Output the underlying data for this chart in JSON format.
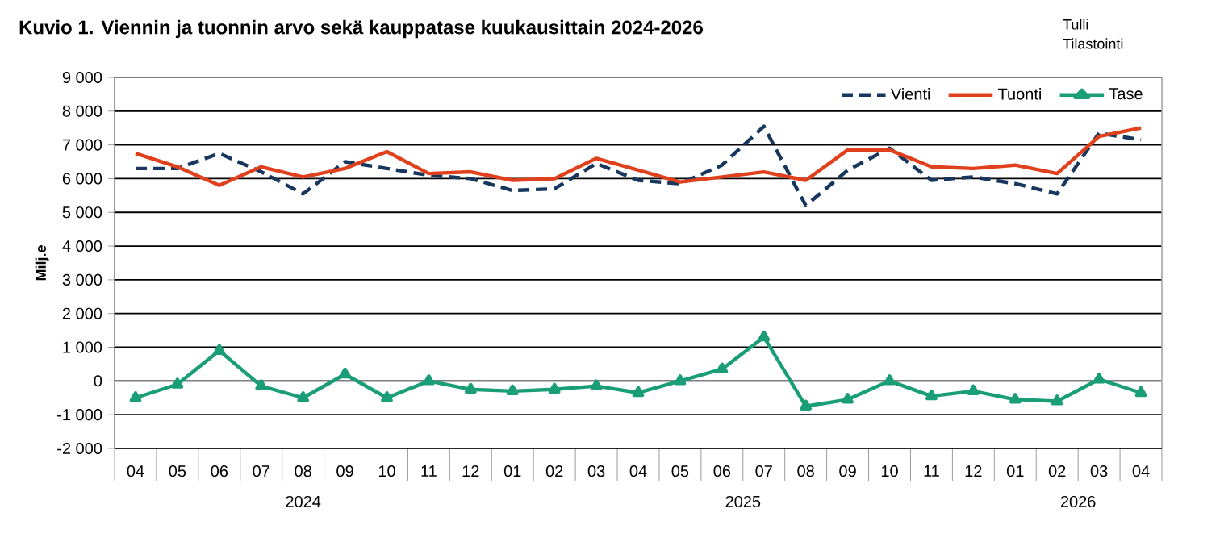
{
  "chart_data": {
    "type": "line",
    "title": "Kuvio 1. Viennin ja tuonnin arvo sekä kauppatase kuukausittain  2024-2026",
    "ylabel": "Milj.e",
    "annotations": [
      "Tulli",
      "Tilastointi",
      "2024",
      "2025",
      "2026"
    ],
    "categories": [
      "04",
      "05",
      "06",
      "07",
      "08",
      "09",
      "10",
      "11",
      "12",
      "01",
      "02",
      "03",
      "04",
      "05",
      "06",
      "07",
      "08",
      "09",
      "10",
      "11",
      "12",
      "01",
      "02",
      "03",
      "04"
    ],
    "series": [
      {
        "name": "Vienti",
        "color": "#17375e",
        "line_style": "dashed",
        "marker": "none",
        "values": [
          6300,
          6300,
          6750,
          6200,
          5550,
          6500,
          6300,
          6100,
          6000,
          5650,
          5700,
          6450,
          5950,
          5850,
          6400,
          7550,
          5200,
          6250,
          6900,
          5950,
          6050,
          5850,
          5550,
          7350,
          7150
        ]
      },
      {
        "name": "Tuonti",
        "color": "#e0401c",
        "line_style": "solid",
        "marker": "none",
        "values": [
          6750,
          6350,
          5800,
          6350,
          6050,
          6300,
          6800,
          6150,
          6200,
          5950,
          6000,
          6600,
          6250,
          5900,
          6050,
          6200,
          5950,
          6850,
          6850,
          6350,
          6300,
          6400,
          6150,
          7250,
          7500
        ]
      },
      {
        "name": "Tase",
        "color": "#1a9e78",
        "line_style": "solid",
        "marker": "triangle",
        "values": [
          -500,
          -100,
          900,
          -150,
          -500,
          200,
          -500,
          0,
          -250,
          -300,
          -250,
          -150,
          -350,
          0,
          350,
          1300,
          -750,
          -550,
          0,
          -450,
          -300,
          -550,
          -600,
          50,
          -350
        ]
      }
    ],
    "ylim": [
      -2000,
      9000
    ],
    "yticks": [
      {
        "value": -2000,
        "label": "-2 000"
      },
      {
        "value": -1000,
        "label": "-1 000"
      },
      0,
      {
        "value": 1000,
        "label": "1 000"
      },
      {
        "value": 2000,
        "label": "2 000"
      },
      {
        "value": 3000,
        "label": "3 000"
      },
      {
        "value": 4000,
        "label": "4 000"
      },
      {
        "value": 5000,
        "label": "5 000"
      },
      {
        "value": 6000,
        "label": "6 000"
      },
      {
        "value": 7000,
        "label": "7 000"
      },
      {
        "value": 8000,
        "label": "8 000"
      },
      {
        "value": 9000,
        "label": "9 000"
      }
    ],
    "grid": "y",
    "legend": "top right"
  }
}
